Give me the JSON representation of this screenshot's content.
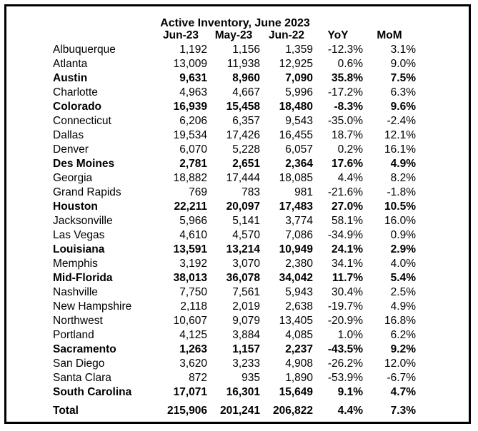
{
  "title": "Active Inventory, June 2023",
  "columns": [
    "Jun-23",
    "May-23",
    "Jun-22",
    "YoY",
    "MoM"
  ],
  "rows": [
    {
      "name": "Albuquerque",
      "bold": false,
      "vals": [
        "1,192",
        "1,156",
        "1,359",
        "-12.3%",
        "3.1%"
      ]
    },
    {
      "name": "Atlanta",
      "bold": false,
      "vals": [
        "13,009",
        "11,938",
        "12,925",
        "0.6%",
        "9.0%"
      ]
    },
    {
      "name": "Austin",
      "bold": true,
      "vals": [
        "9,631",
        "8,960",
        "7,090",
        "35.8%",
        "7.5%"
      ]
    },
    {
      "name": "Charlotte",
      "bold": false,
      "vals": [
        "4,963",
        "4,667",
        "5,996",
        "-17.2%",
        "6.3%"
      ]
    },
    {
      "name": "Colorado",
      "bold": true,
      "vals": [
        "16,939",
        "15,458",
        "18,480",
        "-8.3%",
        "9.6%"
      ]
    },
    {
      "name": "Connecticut",
      "bold": false,
      "vals": [
        "6,206",
        "6,357",
        "9,543",
        "-35.0%",
        "-2.4%"
      ]
    },
    {
      "name": "Dallas",
      "bold": false,
      "vals": [
        "19,534",
        "17,426",
        "16,455",
        "18.7%",
        "12.1%"
      ]
    },
    {
      "name": "Denver",
      "bold": false,
      "vals": [
        "6,070",
        "5,228",
        "6,057",
        "0.2%",
        "16.1%"
      ]
    },
    {
      "name": "Des Moines",
      "bold": true,
      "vals": [
        "2,781",
        "2,651",
        "2,364",
        "17.6%",
        "4.9%"
      ]
    },
    {
      "name": "Georgia",
      "bold": false,
      "vals": [
        "18,882",
        "17,444",
        "18,085",
        "4.4%",
        "8.2%"
      ]
    },
    {
      "name": "Grand Rapids",
      "bold": false,
      "vals": [
        "769",
        "783",
        "981",
        "-21.6%",
        "-1.8%"
      ]
    },
    {
      "name": "Houston",
      "bold": true,
      "vals": [
        "22,211",
        "20,097",
        "17,483",
        "27.0%",
        "10.5%"
      ]
    },
    {
      "name": "Jacksonville",
      "bold": false,
      "vals": [
        "5,966",
        "5,141",
        "3,774",
        "58.1%",
        "16.0%"
      ]
    },
    {
      "name": "Las Vegas",
      "bold": false,
      "vals": [
        "4,610",
        "4,570",
        "7,086",
        "-34.9%",
        "0.9%"
      ]
    },
    {
      "name": "Louisiana",
      "bold": true,
      "vals": [
        "13,591",
        "13,214",
        "10,949",
        "24.1%",
        "2.9%"
      ]
    },
    {
      "name": "Memphis",
      "bold": false,
      "vals": [
        "3,192",
        "3,070",
        "2,380",
        "34.1%",
        "4.0%"
      ]
    },
    {
      "name": "Mid-Florida",
      "bold": true,
      "vals": [
        "38,013",
        "36,078",
        "34,042",
        "11.7%",
        "5.4%"
      ]
    },
    {
      "name": "Nashville",
      "bold": false,
      "vals": [
        "7,750",
        "7,561",
        "5,943",
        "30.4%",
        "2.5%"
      ]
    },
    {
      "name": "New Hampshire",
      "bold": false,
      "vals": [
        "2,118",
        "2,019",
        "2,638",
        "-19.7%",
        "4.9%"
      ]
    },
    {
      "name": "Northwest",
      "bold": false,
      "vals": [
        "10,607",
        "9,079",
        "13,405",
        "-20.9%",
        "16.8%"
      ]
    },
    {
      "name": "Portland",
      "bold": false,
      "vals": [
        "4,125",
        "3,884",
        "4,085",
        "1.0%",
        "6.2%"
      ]
    },
    {
      "name": "Sacramento",
      "bold": true,
      "vals": [
        "1,263",
        "1,157",
        "2,237",
        "-43.5%",
        "9.2%"
      ]
    },
    {
      "name": "San Diego",
      "bold": false,
      "vals": [
        "3,620",
        "3,233",
        "4,908",
        "-26.2%",
        "12.0%"
      ]
    },
    {
      "name": "Santa Clara",
      "bold": false,
      "vals": [
        "872",
        "935",
        "1,890",
        "-53.9%",
        "-6.7%"
      ]
    },
    {
      "name": "South Carolina",
      "bold": true,
      "vals": [
        "17,071",
        "16,301",
        "15,649",
        "9.1%",
        "4.7%"
      ]
    }
  ],
  "total": {
    "name": "Total",
    "vals": [
      "215,906",
      "201,241",
      "206,822",
      "4.4%",
      "7.3%"
    ]
  }
}
